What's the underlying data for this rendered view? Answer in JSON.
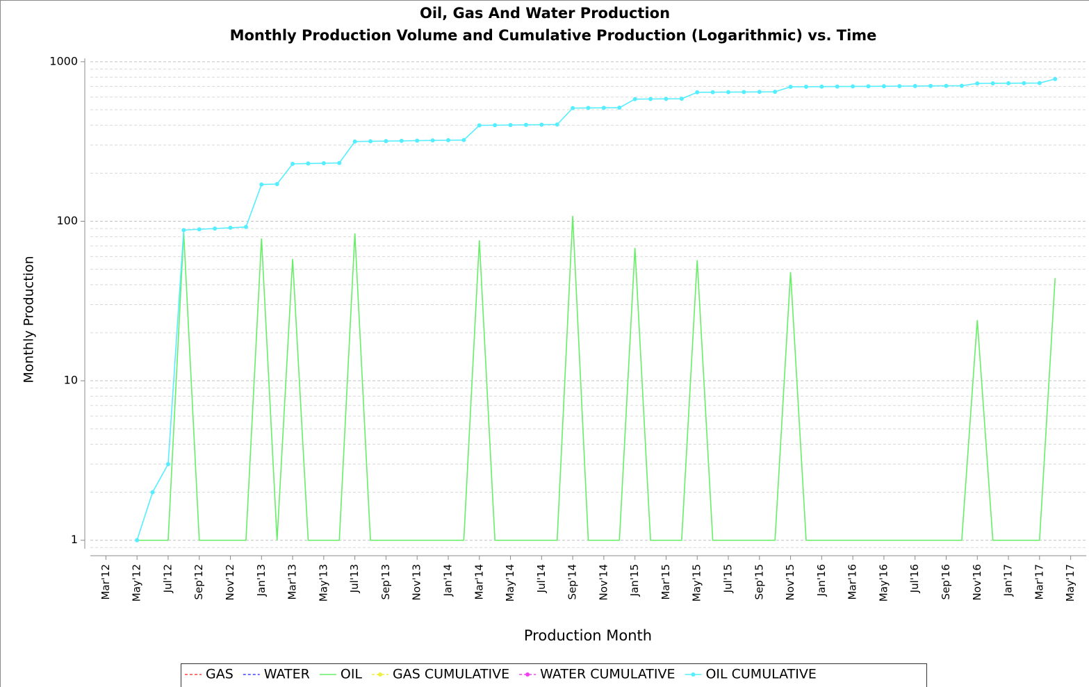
{
  "chart_data": {
    "type": "line",
    "title": "Oil, Gas And Water Production",
    "subtitle": "Monthly Production Volume and Cumulative Production (Logarithmic) vs. Time",
    "x_label": "Production Month",
    "y_label": "Monthly Production",
    "log_y": true,
    "grid": true,
    "legend": "bottom",
    "x": [
      "2012-05",
      "2012-06",
      "2012-07",
      "2012-08",
      "2012-09",
      "2012-10",
      "2012-11",
      "2012-12",
      "2013-01",
      "2013-02",
      "2013-03",
      "2013-04",
      "2013-05",
      "2013-06",
      "2013-07",
      "2013-08",
      "2013-09",
      "2013-10",
      "2013-11",
      "2013-12",
      "2014-01",
      "2014-02",
      "2014-03",
      "2014-04",
      "2014-05",
      "2014-06",
      "2014-07",
      "2014-08",
      "2014-09",
      "2014-10",
      "2014-11",
      "2014-12",
      "2015-01",
      "2015-02",
      "2015-03",
      "2015-04",
      "2015-05",
      "2015-06",
      "2015-07",
      "2015-08",
      "2015-09",
      "2015-10",
      "2015-11",
      "2015-12",
      "2016-01",
      "2016-02",
      "2016-03",
      "2016-04",
      "2016-05",
      "2016-06",
      "2016-07",
      "2016-08",
      "2016-09",
      "2016-10",
      "2016-11",
      "2016-12",
      "2017-01",
      "2017-02",
      "2017-03",
      "2017-04"
    ],
    "xlim": [
      "2012-02",
      "2017-06"
    ],
    "xticks": [
      {
        "value": "2012-03",
        "label": "Mar'12"
      },
      {
        "value": "2012-05",
        "label": "May'12"
      },
      {
        "value": "2012-07",
        "label": "Jul'12"
      },
      {
        "value": "2012-09",
        "label": "Sep'12"
      },
      {
        "value": "2012-11",
        "label": "Nov'12"
      },
      {
        "value": "2013-01",
        "label": "Jan'13"
      },
      {
        "value": "2013-03",
        "label": "Mar'13"
      },
      {
        "value": "2013-05",
        "label": "May'13"
      },
      {
        "value": "2013-07",
        "label": "Jul'13"
      },
      {
        "value": "2013-09",
        "label": "Sep'13"
      },
      {
        "value": "2013-11",
        "label": "Nov'13"
      },
      {
        "value": "2014-01",
        "label": "Jan'14"
      },
      {
        "value": "2014-03",
        "label": "Mar'14"
      },
      {
        "value": "2014-05",
        "label": "May'14"
      },
      {
        "value": "2014-07",
        "label": "Jul'14"
      },
      {
        "value": "2014-09",
        "label": "Sep'14"
      },
      {
        "value": "2014-11",
        "label": "Nov'14"
      },
      {
        "value": "2015-01",
        "label": "Jan'15"
      },
      {
        "value": "2015-03",
        "label": "Mar'15"
      },
      {
        "value": "2015-05",
        "label": "May'15"
      },
      {
        "value": "2015-07",
        "label": "Jul'15"
      },
      {
        "value": "2015-09",
        "label": "Sep'15"
      },
      {
        "value": "2015-11",
        "label": "Nov'15"
      },
      {
        "value": "2016-01",
        "label": "Jan'16"
      },
      {
        "value": "2016-03",
        "label": "Mar'16"
      },
      {
        "value": "2016-05",
        "label": "May'16"
      },
      {
        "value": "2016-07",
        "label": "Jul'16"
      },
      {
        "value": "2016-09",
        "label": "Sep'16"
      },
      {
        "value": "2016-11",
        "label": "Nov'16"
      },
      {
        "value": "2017-01",
        "label": "Jan'17"
      },
      {
        "value": "2017-03",
        "label": "Mar'17"
      },
      {
        "value": "2017-05",
        "label": "May'17"
      }
    ],
    "ylim": [
      0.8,
      1050
    ],
    "yticks": [
      1,
      10,
      100,
      1000
    ],
    "series": [
      {
        "name": "GAS",
        "color": "#ff4040",
        "dash": true,
        "marker": false
      },
      {
        "name": "WATER",
        "color": "#4040ff",
        "dash": true,
        "marker": false
      },
      {
        "name": "OIL",
        "color": "#66ee66",
        "dash": false,
        "marker": false,
        "values": [
          1,
          1,
          1,
          85,
          1,
          1,
          1,
          1,
          78,
          1,
          58,
          1,
          1,
          1,
          84,
          1,
          1,
          1,
          1,
          1,
          1,
          1,
          76,
          1,
          1,
          1,
          1,
          1,
          108,
          1,
          1,
          1,
          68,
          1,
          1,
          1,
          57,
          1,
          1,
          1,
          1,
          1,
          48,
          1,
          1,
          1,
          1,
          1,
          1,
          1,
          1,
          1,
          1,
          1,
          24,
          1,
          1,
          1,
          1,
          44
        ]
      },
      {
        "name": "GAS CUMULATIVE",
        "color": "#eeee40",
        "dash": true,
        "marker": true
      },
      {
        "name": "WATER CUMULATIVE",
        "color": "#ee40ee",
        "dash": true,
        "marker": true
      },
      {
        "name": "OIL CUMULATIVE",
        "color": "#55eeff",
        "dash": false,
        "marker": true,
        "values": [
          1,
          2,
          3,
          88,
          89,
          90,
          91,
          92,
          170,
          171,
          229,
          230,
          231,
          232,
          316,
          317,
          318,
          319,
          320,
          321,
          322,
          323,
          399,
          400,
          401,
          402,
          403,
          404,
          512,
          513,
          514,
          515,
          583,
          584,
          585,
          586,
          643,
          644,
          645,
          646,
          647,
          648,
          696,
          697,
          698,
          699,
          700,
          701,
          702,
          703,
          704,
          705,
          706,
          707,
          731,
          732,
          733,
          734,
          735,
          779
        ]
      }
    ]
  }
}
